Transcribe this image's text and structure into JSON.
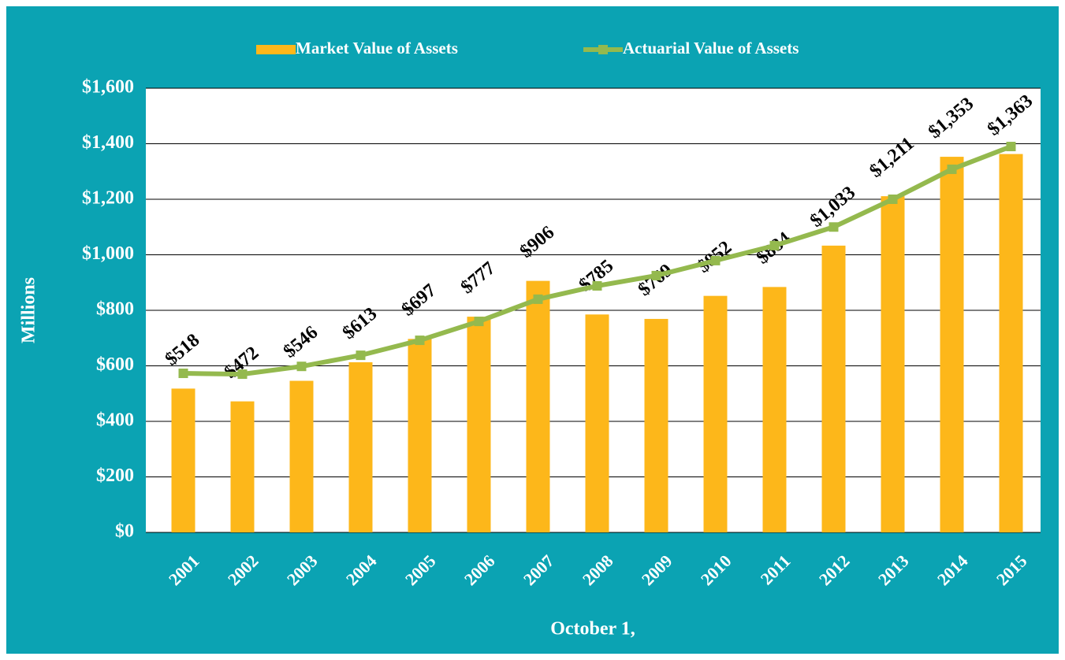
{
  "chart_data": {
    "type": "bar_line",
    "x_label": "October 1,",
    "y_label": "Millions",
    "categories": [
      "2001",
      "2002",
      "2003",
      "2004",
      "2005",
      "2006",
      "2007",
      "2008",
      "2009",
      "2010",
      "2011",
      "2012",
      "2013",
      "2014",
      "2015"
    ],
    "series": [
      {
        "name": "Market Value of Assets",
        "type": "bar",
        "color": "#fdb71a",
        "values": [
          518,
          472,
          546,
          613,
          697,
          777,
          906,
          785,
          769,
          852,
          884,
          1033,
          1211,
          1353,
          1363
        ],
        "value_labels": [
          "$518",
          "$472",
          "$546",
          "$613",
          "$697",
          "$777",
          "$906",
          "$785",
          "$769",
          "$852",
          "$884",
          "$1,033",
          "$1,211",
          "$1,353",
          "$1,363"
        ]
      },
      {
        "name": "Actuarial Value of Assets",
        "type": "line",
        "color": "#94b94e",
        "values": [
          573,
          570,
          598,
          638,
          692,
          760,
          840,
          888,
          925,
          979,
          1033,
          1100,
          1200,
          1308,
          1390
        ]
      }
    ],
    "ylim": [
      0,
      1600
    ],
    "yticks": [
      {
        "value": 0,
        "label": "$0"
      },
      {
        "value": 200,
        "label": "$200"
      },
      {
        "value": 400,
        "label": "$400"
      },
      {
        "value": 600,
        "label": "$600"
      },
      {
        "value": 800,
        "label": "$800"
      },
      {
        "value": 1000,
        "label": "$1,000"
      },
      {
        "value": 1200,
        "label": "$1,200"
      },
      {
        "value": 1400,
        "label": "$1,400"
      },
      {
        "value": 1600,
        "label": "$1,600"
      }
    ],
    "grid": true,
    "legend": "top"
  }
}
